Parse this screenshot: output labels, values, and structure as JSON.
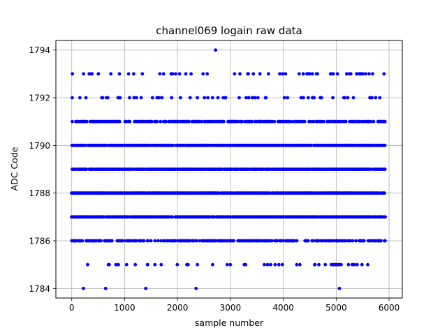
{
  "chart_data": {
    "type": "scatter",
    "title": "channel069 logain raw data",
    "xlabel": "sample number",
    "ylabel": "ADC Code",
    "xlim": [
      -300,
      6250
    ],
    "ylim": [
      1783.6,
      1794.4
    ],
    "xticks": [
      0,
      1000,
      2000,
      3000,
      4000,
      5000,
      6000
    ],
    "yticks": [
      1784,
      1786,
      1788,
      1790,
      1792,
      1794
    ],
    "grid": true,
    "marker_color": "#0000ff",
    "x_range": [
      0,
      5930
    ],
    "levels": [
      {
        "y": 1784,
        "points": [
          220,
          640,
          1400,
          2350,
          5060
        ]
      },
      {
        "y": 1785,
        "density": "sparse"
      },
      {
        "y": 1786,
        "density": "medium"
      },
      {
        "y": 1787,
        "density": "dense"
      },
      {
        "y": 1788,
        "density": "dense"
      },
      {
        "y": 1789,
        "density": "dense"
      },
      {
        "y": 1790,
        "density": "dense"
      },
      {
        "y": 1791,
        "density": "medium"
      },
      {
        "y": 1792,
        "density": "sparse"
      },
      {
        "y": 1793,
        "density": "sparse"
      },
      {
        "y": 1794,
        "points": [
          2720
        ]
      }
    ]
  }
}
